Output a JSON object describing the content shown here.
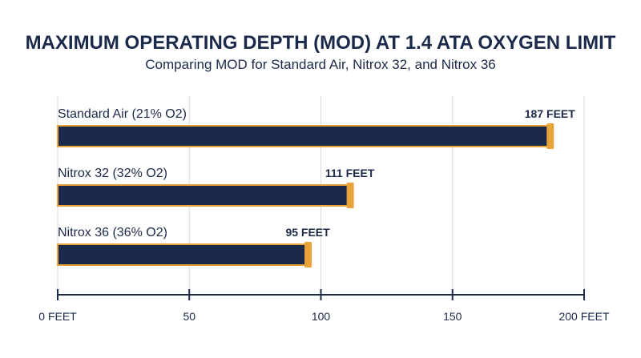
{
  "chart_data": {
    "type": "bar",
    "orientation": "horizontal",
    "title": "MAXIMUM OPERATING DEPTH (MOD) AT 1.4 ATA OXYGEN LIMIT",
    "subtitle": "Comparing MOD for Standard Air, Nitrox 32, and Nitrox 36",
    "categories": [
      "Standard Air (21% O2)",
      "Nitrox 32 (32% O2)",
      "Nitrox 36 (36% O2)"
    ],
    "values": [
      187,
      111,
      95
    ],
    "value_labels": [
      "187 FEET",
      "111 FEET",
      "95 FEET"
    ],
    "xlim": [
      0,
      200
    ],
    "ticks": [
      0,
      50,
      100,
      150,
      200
    ],
    "tick_labels": [
      "0 FEET",
      "50",
      "100",
      "150",
      "200 FEET"
    ],
    "grid": true,
    "colors": {
      "bar": "#1b2a4a",
      "accent": "#e8a33a",
      "grid": "#d9d9d9",
      "text": "#1b2a4a"
    }
  }
}
